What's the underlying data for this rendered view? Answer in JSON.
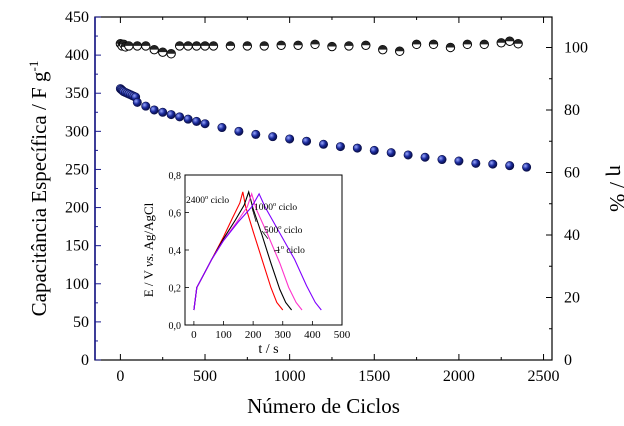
{
  "chart_data": [
    {
      "type": "scatter",
      "xlabel": "Número de Ciclos",
      "ylabel_left": "Capacitância Específica / F g",
      "ylabel_left_sup": "-1",
      "ylabel_right": "η / %",
      "xlim": [
        -150,
        2550
      ],
      "ylim_left": [
        0,
        450
      ],
      "ylim_right": [
        0,
        109.756
      ],
      "x_ticks": [
        "0",
        "500",
        "1000",
        "1500",
        "2000",
        "2500"
      ],
      "y_left_ticks": [
        "0",
        "50",
        "100",
        "150",
        "200",
        "250",
        "300",
        "350",
        "400",
        "450"
      ],
      "y_right_ticks": [
        "0",
        "20",
        "40",
        "60",
        "80",
        "100"
      ],
      "grid": false,
      "series": [
        {
          "axis": "right",
          "marker": "half-filled-circle",
          "color": "#000000",
          "x": [
            0,
            10,
            20,
            30,
            50,
            100,
            150,
            200,
            250,
            300,
            350,
            400,
            450,
            500,
            550,
            650,
            750,
            850,
            950,
            1050,
            1150,
            1250,
            1350,
            1450,
            1550,
            1650,
            1750,
            1850,
            1950,
            2050,
            2150,
            2250,
            2300,
            2350
          ],
          "values": [
            101.2,
            100.5,
            101.0,
            100.2,
            100.5,
            100.5,
            100.5,
            99.3,
            98.5,
            98.0,
            100.5,
            100.5,
            100.5,
            100.5,
            100.5,
            100.5,
            100.5,
            100.5,
            100.7,
            100.7,
            101.0,
            100.3,
            100.5,
            100.7,
            99.3,
            98.8,
            101.0,
            101.0,
            100.0,
            101.0,
            101.0,
            101.5,
            102.0,
            101.2
          ]
        },
        {
          "axis": "left",
          "marker": "filled-circle",
          "color": "#1a1a8c",
          "x": [
            0,
            5,
            10,
            15,
            20,
            30,
            40,
            50,
            60,
            70,
            80,
            90,
            100,
            150,
            200,
            250,
            300,
            350,
            400,
            450,
            500,
            600,
            700,
            800,
            900,
            1000,
            1100,
            1200,
            1300,
            1400,
            1500,
            1600,
            1700,
            1800,
            1900,
            2000,
            2100,
            2200,
            2300,
            2400
          ],
          "values": [
            356,
            355,
            354,
            353,
            352,
            351,
            350,
            349,
            348,
            347,
            346,
            345,
            338,
            333,
            328,
            325,
            322,
            319,
            316,
            313,
            310,
            305,
            300,
            296,
            293,
            290,
            287,
            283,
            280,
            278,
            275,
            272,
            269,
            266,
            263,
            261,
            258,
            257,
            255,
            253
          ]
        }
      ]
    },
    {
      "type": "line",
      "role": "inset",
      "xlabel": "t / s",
      "ylabel": "E / V vs. Ag/AgCl",
      "ylabel_parts": [
        "E / V ",
        "vs.",
        " Ag/AgCl"
      ],
      "xlim": [
        -30,
        500
      ],
      "ylim": [
        0,
        0.8
      ],
      "x_ticks": [
        "0",
        "100",
        "200",
        "300",
        "400",
        "500"
      ],
      "y_ticks": [
        "0,0",
        "0,2",
        "0,4",
        "0,6",
        "0,8"
      ],
      "series": [
        {
          "name": "2400° ciclo",
          "label_text": "2400",
          "label_suffix": " ciclo",
          "color": "#ff0000",
          "x": [
            0,
            10,
            30,
            60,
            100,
            130,
            155,
            165,
            175,
            200,
            230,
            260,
            280,
            300
          ],
          "values": [
            0.08,
            0.2,
            0.26,
            0.35,
            0.47,
            0.57,
            0.65,
            0.71,
            0.63,
            0.5,
            0.35,
            0.2,
            0.12,
            0.08
          ]
        },
        {
          "name": "1000° ciclo",
          "label_text": "1000",
          "label_suffix": " ciclo",
          "color": "#000000",
          "x": [
            0,
            10,
            30,
            60,
            100,
            140,
            170,
            185,
            200,
            230,
            260,
            290,
            310,
            330
          ],
          "values": [
            0.08,
            0.2,
            0.26,
            0.35,
            0.46,
            0.56,
            0.64,
            0.71,
            0.62,
            0.48,
            0.33,
            0.19,
            0.12,
            0.08
          ]
        },
        {
          "name": "500° ciclo",
          "label_text": "500",
          "label_suffix": " ciclo",
          "color": "#ff33cc",
          "x": [
            0,
            10,
            30,
            60,
            100,
            150,
            180,
            195,
            210,
            250,
            290,
            320,
            345,
            365
          ],
          "values": [
            0.08,
            0.2,
            0.26,
            0.35,
            0.45,
            0.56,
            0.63,
            0.7,
            0.62,
            0.48,
            0.33,
            0.2,
            0.12,
            0.08
          ]
        },
        {
          "name": "1° ciclo",
          "label_text": "1",
          "label_suffix": " ciclo",
          "color": "#7f00ff",
          "x": [
            0,
            10,
            30,
            60,
            100,
            150,
            195,
            220,
            240,
            290,
            340,
            380,
            410,
            430
          ],
          "values": [
            0.08,
            0.2,
            0.26,
            0.35,
            0.45,
            0.55,
            0.63,
            0.7,
            0.63,
            0.49,
            0.35,
            0.21,
            0.12,
            0.08
          ]
        }
      ]
    }
  ]
}
